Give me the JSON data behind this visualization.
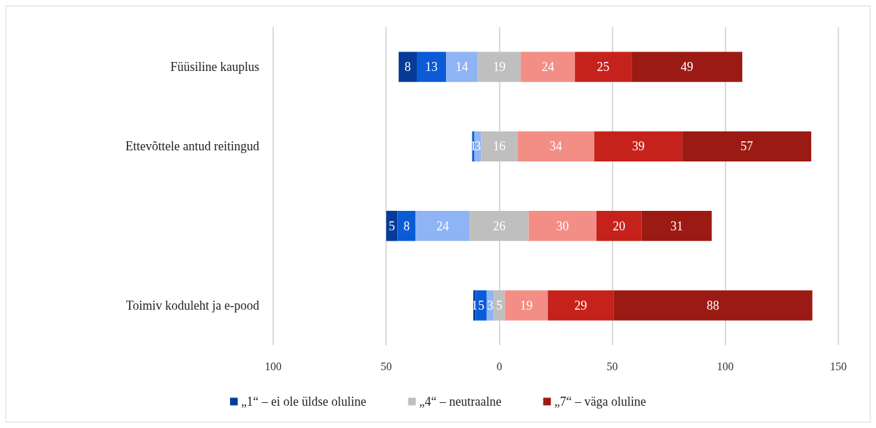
{
  "chart_data": {
    "type": "bar",
    "orientation": "horizontal",
    "categories": [
      "Füüsiline kauplus",
      "Ettevõttele antud reitingud",
      null,
      "Toimiv koduleht ja e-pood"
    ],
    "series": [
      {
        "name": "„1“ – ei ole üldse oluline",
        "color": "#073b97",
        "values": [
          8,
          null,
          5,
          1
        ],
        "base": [
          -44.5,
          null,
          -50,
          -11.5
        ]
      },
      {
        "color": "#0b5bd6",
        "values": [
          13,
          1,
          8,
          5
        ],
        "base": [
          -36.5,
          -12,
          -45,
          -10.5
        ]
      },
      {
        "color": "#8fb4f5",
        "values": [
          14,
          3,
          24,
          3
        ],
        "base": [
          -23.5,
          -11,
          -37,
          -5.5
        ]
      },
      {
        "name": "„4“ – neutraalne",
        "color": "#bfbfbf",
        "values": [
          19,
          16,
          26,
          5
        ],
        "base": [
          -9.5,
          -8,
          -13,
          -2.5
        ]
      },
      {
        "color": "#f28e86",
        "values": [
          24,
          34,
          30,
          19
        ],
        "base": [
          9.5,
          8,
          13,
          2.5
        ]
      },
      {
        "color": "#c5221b",
        "values": [
          25,
          39,
          20,
          29
        ],
        "base": [
          33.5,
          42,
          43,
          21.5
        ]
      },
      {
        "name": "„7“ – väga oluline",
        "color": "#9b1b14",
        "values": [
          49,
          57,
          31,
          88
        ],
        "base": [
          58.5,
          81,
          63,
          50.5
        ]
      }
    ],
    "xlim": [
      -100,
      150
    ],
    "xticks": [
      {
        "value": -100,
        "label": "100"
      },
      {
        "value": -50,
        "label": "50"
      },
      0,
      50,
      100,
      150
    ],
    "grid": "x",
    "legend": "bottom",
    "data_labels": true
  }
}
